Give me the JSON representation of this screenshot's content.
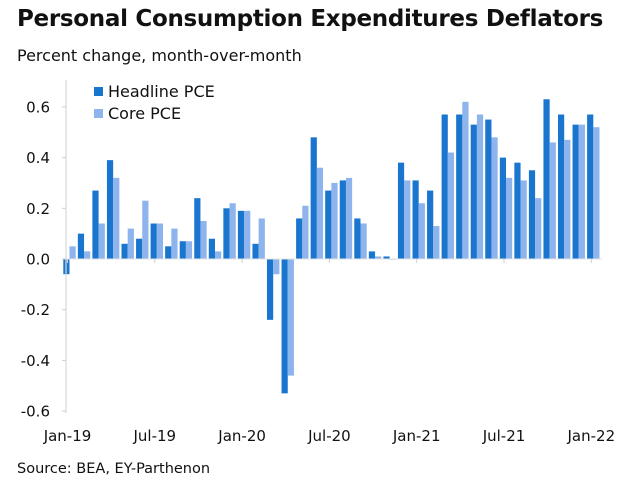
{
  "chart_data": {
    "type": "bar",
    "title": "Personal Consumption Expenditures Deflators",
    "subtitle": "Percent change, month-over-month",
    "source": "Source: BEA, EY-Parthenon",
    "xlabel": "",
    "ylabel": "",
    "ylim": [
      -0.6,
      0.7
    ],
    "yticks": [
      0.6,
      0.4,
      0.2,
      0.0,
      -0.2,
      -0.4,
      -0.6
    ],
    "ytick_labels": [
      "0.6",
      "0.4",
      "0.2",
      "0.0",
      "-0.2",
      "-0.4",
      "-0.6"
    ],
    "xtick_labels": [
      {
        "index": 0,
        "label": "Jan-19"
      },
      {
        "index": 6,
        "label": "Jul-19"
      },
      {
        "index": 12,
        "label": "Jan-20"
      },
      {
        "index": 18,
        "label": "Jul-20"
      },
      {
        "index": 24,
        "label": "Jan-21"
      },
      {
        "index": 30,
        "label": "Jul-21"
      },
      {
        "index": 36,
        "label": "Jan-22"
      }
    ],
    "grid": false,
    "legend_position": "top-left",
    "categories": [
      "Jan-19",
      "Feb-19",
      "Mar-19",
      "Apr-19",
      "May-19",
      "Jun-19",
      "Jul-19",
      "Aug-19",
      "Sep-19",
      "Oct-19",
      "Nov-19",
      "Dec-19",
      "Jan-20",
      "Feb-20",
      "Mar-20",
      "Apr-20",
      "May-20",
      "Jun-20",
      "Jul-20",
      "Aug-20",
      "Sep-20",
      "Oct-20",
      "Nov-20",
      "Dec-20",
      "Jan-21",
      "Feb-21",
      "Mar-21",
      "Apr-21",
      "May-21",
      "Jun-21",
      "Jul-21",
      "Aug-21",
      "Sep-21",
      "Oct-21",
      "Nov-21",
      "Dec-21",
      "Jan-22"
    ],
    "series": [
      {
        "name": "Headline PCE",
        "color": "#1a75cf",
        "values": [
          -0.06,
          0.1,
          0.27,
          0.39,
          0.06,
          0.08,
          0.14,
          0.05,
          0.07,
          0.24,
          0.08,
          0.2,
          0.19,
          0.06,
          -0.24,
          -0.53,
          0.16,
          0.48,
          0.27,
          0.31,
          0.16,
          0.03,
          0.01,
          0.38,
          0.31,
          0.27,
          0.57,
          0.57,
          0.53,
          0.55,
          0.4,
          0.38,
          0.35,
          0.63,
          0.57,
          0.53,
          0.57
        ]
      },
      {
        "name": "Core PCE",
        "color": "#8db4ec",
        "values": [
          0.05,
          0.03,
          0.14,
          0.32,
          0.12,
          0.23,
          0.14,
          0.12,
          0.07,
          0.15,
          0.03,
          0.22,
          0.19,
          0.16,
          -0.06,
          -0.46,
          0.21,
          0.36,
          0.3,
          0.32,
          0.14,
          0.01,
          0.0,
          0.31,
          0.22,
          0.13,
          0.42,
          0.62,
          0.57,
          0.48,
          0.32,
          0.31,
          0.24,
          0.46,
          0.47,
          0.53,
          0.52
        ]
      }
    ]
  }
}
